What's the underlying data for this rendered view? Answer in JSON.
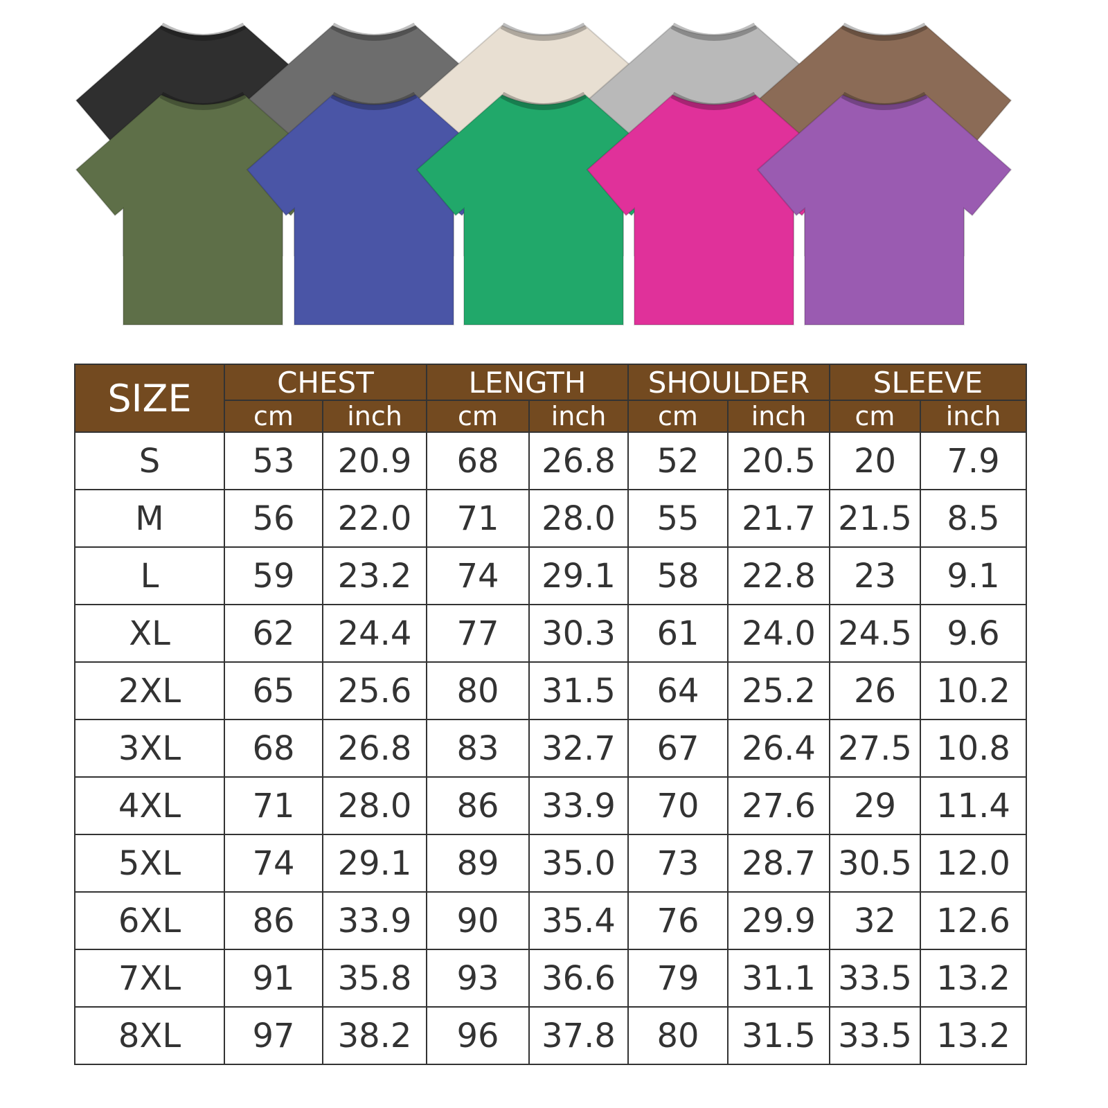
{
  "shirts": {
    "back_row": [
      {
        "color_name": "black",
        "color": "#2f2f2f"
      },
      {
        "color_name": "dark-grey",
        "color": "#6d6d6d"
      },
      {
        "color_name": "cream",
        "color": "#e8dfd2"
      },
      {
        "color_name": "light-grey",
        "color": "#b9b9b9"
      },
      {
        "color_name": "brown",
        "color": "#8b6b56"
      }
    ],
    "front_row": [
      {
        "color_name": "olive",
        "color": "#5e6f48"
      },
      {
        "color_name": "blue",
        "color": "#4a55a6"
      },
      {
        "color_name": "green",
        "color": "#21a86a"
      },
      {
        "color_name": "pink",
        "color": "#e0319a"
      },
      {
        "color_name": "purple",
        "color": "#9a5bb1"
      }
    ]
  },
  "colors": {
    "header_bg": "#734a20",
    "header_text": "#ffffff",
    "border": "#333333"
  },
  "table": {
    "size_label": "SIZE",
    "groups": [
      "CHEST",
      "LENGTH",
      "SHOULDER",
      "SLEEVE"
    ],
    "units": [
      "cm",
      "inch"
    ],
    "rows": [
      [
        "S",
        "53",
        "20.9",
        "68",
        "26.8",
        "52",
        "20.5",
        "20",
        "7.9"
      ],
      [
        "M",
        "56",
        "22.0",
        "71",
        "28.0",
        "55",
        "21.7",
        "21.5",
        "8.5"
      ],
      [
        "L",
        "59",
        "23.2",
        "74",
        "29.1",
        "58",
        "22.8",
        "23",
        "9.1"
      ],
      [
        "XL",
        "62",
        "24.4",
        "77",
        "30.3",
        "61",
        "24.0",
        "24.5",
        "9.6"
      ],
      [
        "2XL",
        "65",
        "25.6",
        "80",
        "31.5",
        "64",
        "25.2",
        "26",
        "10.2"
      ],
      [
        "3XL",
        "68",
        "26.8",
        "83",
        "32.7",
        "67",
        "26.4",
        "27.5",
        "10.8"
      ],
      [
        "4XL",
        "71",
        "28.0",
        "86",
        "33.9",
        "70",
        "27.6",
        "29",
        "11.4"
      ],
      [
        "5XL",
        "74",
        "29.1",
        "89",
        "35.0",
        "73",
        "28.7",
        "30.5",
        "12.0"
      ],
      [
        "6XL",
        "86",
        "33.9",
        "90",
        "35.4",
        "76",
        "29.9",
        "32",
        "12.6"
      ],
      [
        "7XL",
        "91",
        "35.8",
        "93",
        "36.6",
        "79",
        "31.1",
        "33.5",
        "13.2"
      ],
      [
        "8XL",
        "97",
        "38.2",
        "96",
        "37.8",
        "80",
        "31.5",
        "33.5",
        "13.2"
      ]
    ]
  }
}
